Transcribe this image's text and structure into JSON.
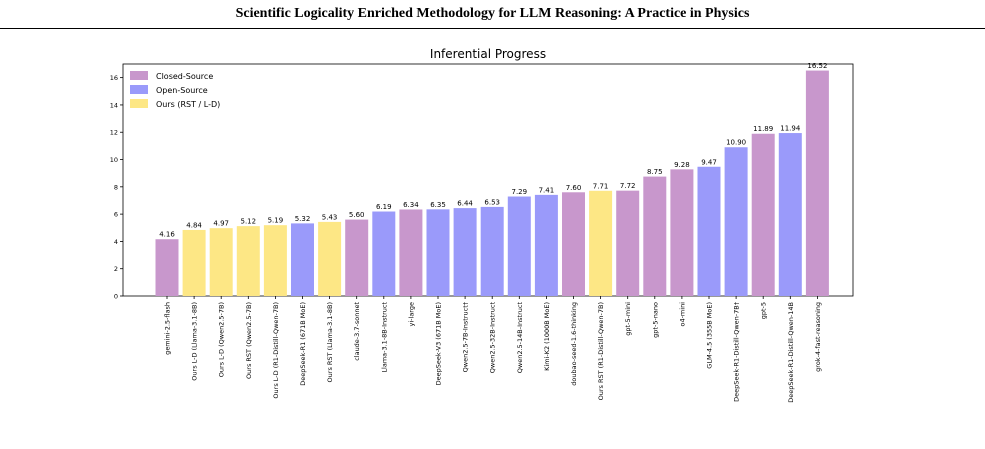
{
  "paper": {
    "title": "Scientific Logicality Enriched Methodology for LLM Reasoning: A Practice in Physics",
    "footer": ""
  },
  "chart_data": {
    "type": "bar",
    "title": "Inferential Progress",
    "xlabel": "",
    "ylabel": "",
    "ylim": [
      0,
      17
    ],
    "yticks": [
      0,
      2,
      4,
      6,
      8,
      10,
      12,
      14,
      16
    ],
    "grid": false,
    "legend_position": "top-left",
    "legend": [
      {
        "key": "closed",
        "label": "Closed-Source",
        "color": "#c897cc"
      },
      {
        "key": "open",
        "label": "Open-Source",
        "color": "#9a9afa"
      },
      {
        "key": "ours",
        "label": "Ours (RST / L-D)",
        "color": "#fde785"
      }
    ],
    "categories": [
      "gemini-2.5-flash",
      "Ours L-D (Llama-3.1-8B)",
      "Ours L-D (Qwen2.5-7B)",
      "Ours RST (Qwen2.5-7B)",
      "Ours L-D (R1-Distill-Qwen-7B)",
      "DeepSeek-R1 (671B MoE)",
      "Ours RST (Llama-3.1-8B)",
      "claude-3.7-sonnet",
      "Llama-3.1-8B-Instruct",
      "yi-large",
      "DeepSeek-V3 (671B MoE)",
      "Qwen2.5-7B-Instruct†",
      "Qwen2.5-32B-Instruct",
      "Qwen2.5-14B-Instruct",
      "Kimi-K2 (1000B MoE)",
      "doubao-seed-1.6-thinking",
      "Ours RST (R1-Distill-Qwen-7B)",
      "gpt-5-mini",
      "gpt-5-nano",
      "o4-mini",
      "GLM-4.5 (355B MoE)",
      "DeepSeek-R1-Distill-Qwen-7B†",
      "gpt-5",
      "DeepSeek-R1-Distill-Qwen-14B",
      "grok-4-fast-reasoning"
    ],
    "values": [
      4.16,
      4.84,
      4.97,
      5.12,
      5.19,
      5.32,
      5.43,
      5.6,
      6.19,
      6.34,
      6.35,
      6.44,
      6.53,
      7.29,
      7.41,
      7.6,
      7.71,
      7.72,
      8.75,
      9.28,
      9.47,
      10.9,
      11.89,
      11.94,
      16.52
    ],
    "value_labels": [
      "4.16",
      "4.84",
      "4.97",
      "5.12",
      "5.19",
      "5.32",
      "5.43",
      "5.60",
      "6.19",
      "6.34",
      "6.35",
      "6.44",
      "6.53",
      "7.29",
      "7.41",
      "7.60",
      "7.71",
      "7.72",
      "8.75",
      "9.28",
      "9.47",
      "10.90",
      "11.89",
      "11.94",
      "16.52"
    ],
    "groups": [
      "closed",
      "ours",
      "ours",
      "ours",
      "ours",
      "open",
      "ours",
      "closed",
      "open",
      "closed",
      "open",
      "open",
      "open",
      "open",
      "open",
      "closed",
      "ours",
      "closed",
      "closed",
      "closed",
      "open",
      "open",
      "closed",
      "open",
      "closed"
    ]
  }
}
